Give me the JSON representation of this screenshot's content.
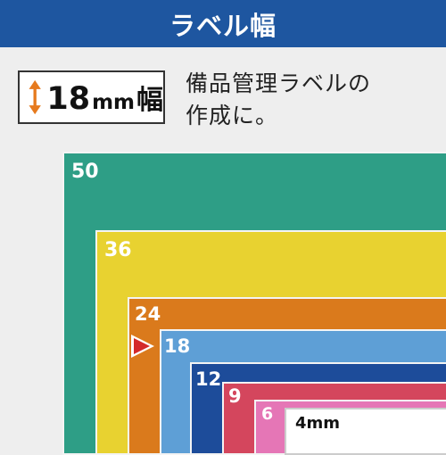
{
  "header": {
    "title": "ラベル幅"
  },
  "badge": {
    "number": "18",
    "unit": "mm",
    "suffix": "幅",
    "icon": "up-down-arrow-icon"
  },
  "caption": {
    "line1": "備品管理ラベルの",
    "line2": "作成に。"
  },
  "tapes": [
    {
      "label": "50",
      "color": "#2e9e86",
      "label_color": "#ffffff"
    },
    {
      "label": "36",
      "color": "#e8d230",
      "label_color": "#ffffff"
    },
    {
      "label": "24",
      "color": "#da7a1c",
      "label_color": "#ffffff"
    },
    {
      "label": "18",
      "color": "#5e9fd6",
      "label_color": "#ffffff"
    },
    {
      "label": "12",
      "color": "#1d4c9a",
      "label_color": "#ffffff"
    },
    {
      "label": "9",
      "color": "#d4465d",
      "label_color": "#ffffff"
    },
    {
      "label": "6",
      "color": "#e576b6",
      "label_color": "#ffffff"
    },
    {
      "label": "4mm",
      "color": "#ffffff",
      "label_color": "#111111"
    }
  ],
  "highlight": {
    "icon": "red-pointer-triangle-icon",
    "color": "#d42a2a"
  }
}
